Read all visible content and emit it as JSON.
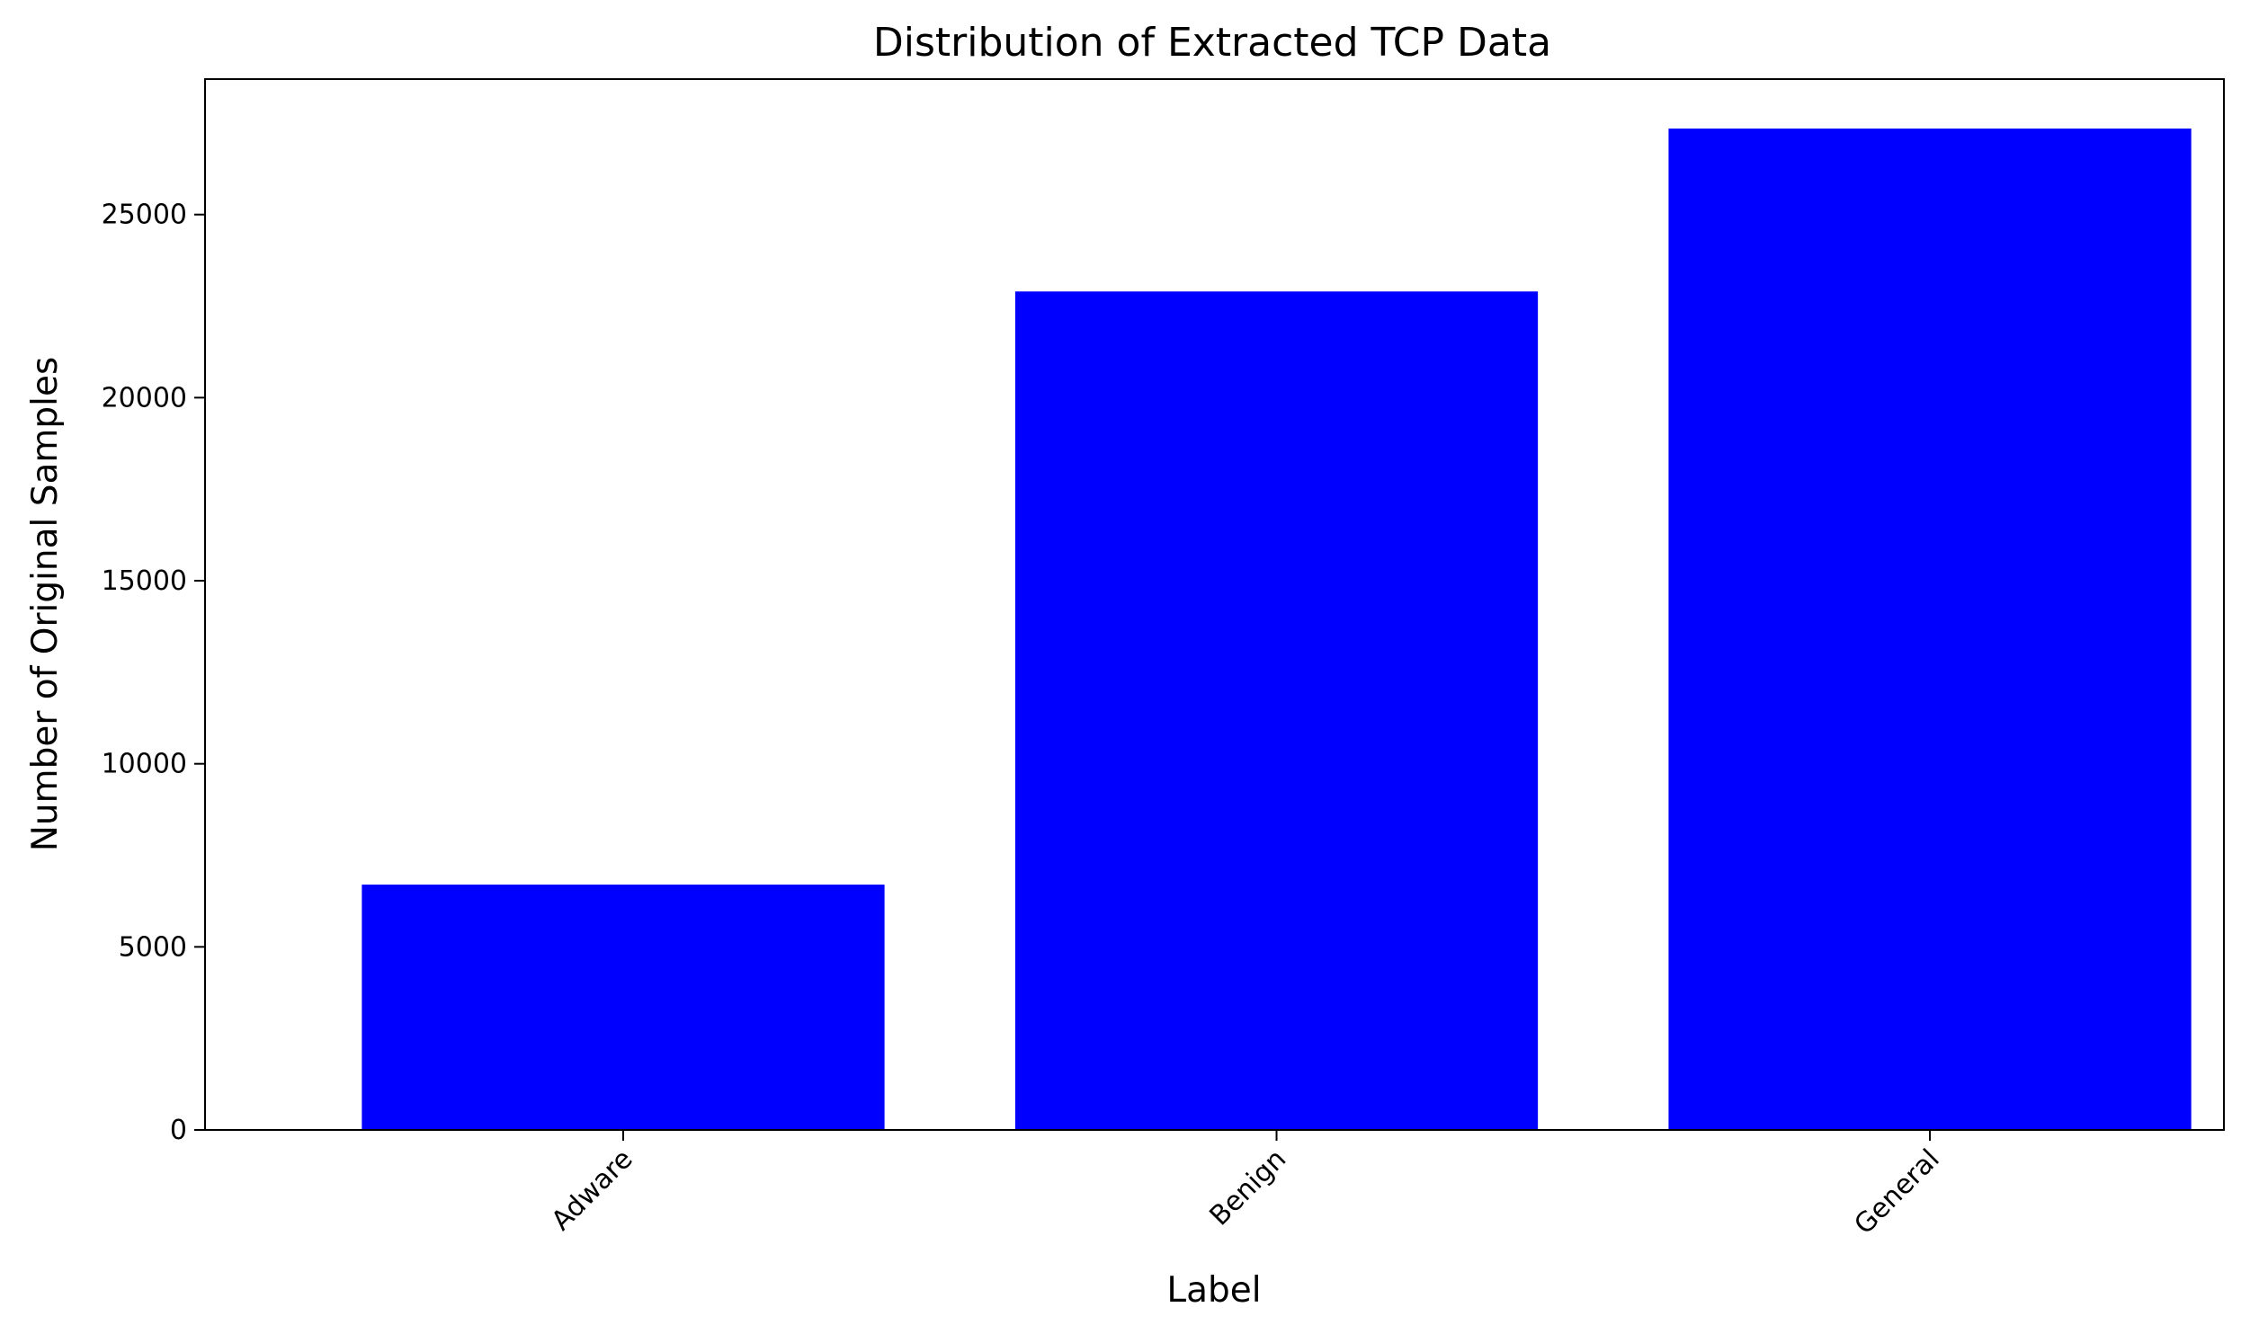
{
  "chart_data": {
    "type": "bar",
    "title": "Distribution of Extracted TCP Data",
    "xlabel": "Label",
    "ylabel": "Number of Original Samples",
    "categories": [
      "Adware",
      "Benign",
      "General"
    ],
    "values": [
      6700,
      22900,
      27350
    ],
    "ylim": [
      0,
      28700
    ],
    "yticks": [
      0,
      5000,
      10000,
      15000,
      20000,
      25000
    ],
    "ytick_labels": [
      "0",
      "5000",
      "10000",
      "15000",
      "20000",
      "25000"
    ],
    "bar_color": "#0000ff",
    "grid": false,
    "legend": false,
    "xtick_rotation": "45 degrees"
  }
}
